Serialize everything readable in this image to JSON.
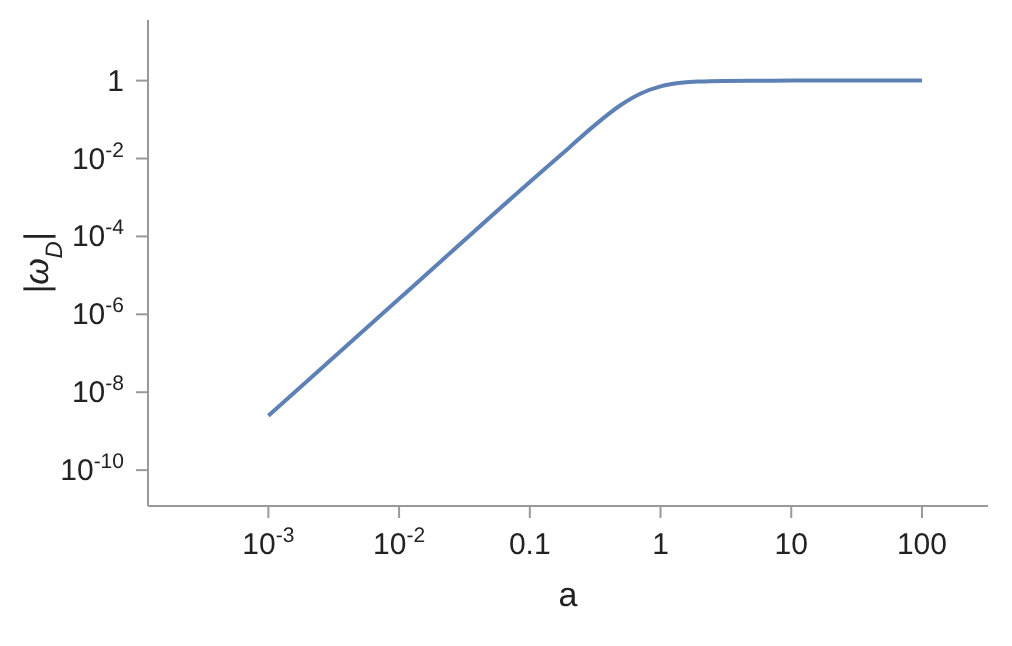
{
  "chart_data": {
    "type": "line",
    "xlabel": "a",
    "ylabel": "|ω$_{D}$|",
    "log": "xy",
    "grid": false,
    "legend": false,
    "marker": "none",
    "line_style": "solid",
    "x": [
      0.001,
      0.01,
      0.1,
      0.2,
      0.3,
      0.5,
      0.7,
      1,
      1.5,
      2,
      3,
      5,
      10,
      30,
      100
    ],
    "series": [
      {
        "color": "#5e81b5",
        "values": [
          2.5e-09,
          2.5e-06,
          0.0025,
          0.019,
          0.063,
          0.24,
          0.46,
          0.71,
          0.89,
          0.95,
          0.985,
          0.997,
          1,
          1,
          1
        ]
      }
    ],
    "xlim": [
      0.00012,
      320
    ],
    "ylim": [
      1.2e-11,
      36
    ],
    "xticks": [
      {
        "value": 0.001,
        "label": "10$^{-3}$"
      },
      {
        "value": 0.01,
        "label": "10$^{-2}$"
      },
      0.1,
      1,
      10,
      100
    ],
    "yticks": [
      {
        "value": 1e-10,
        "label": "10$^{-10}$"
      },
      {
        "value": 1e-08,
        "label": "10$^{-8}$"
      },
      {
        "value": 1e-06,
        "label": "10$^{-6}$"
      },
      {
        "value": 0.0001,
        "label": "10$^{-4}$"
      },
      {
        "value": 0.01,
        "label": "10$^{-2}$"
      },
      1
    ]
  }
}
